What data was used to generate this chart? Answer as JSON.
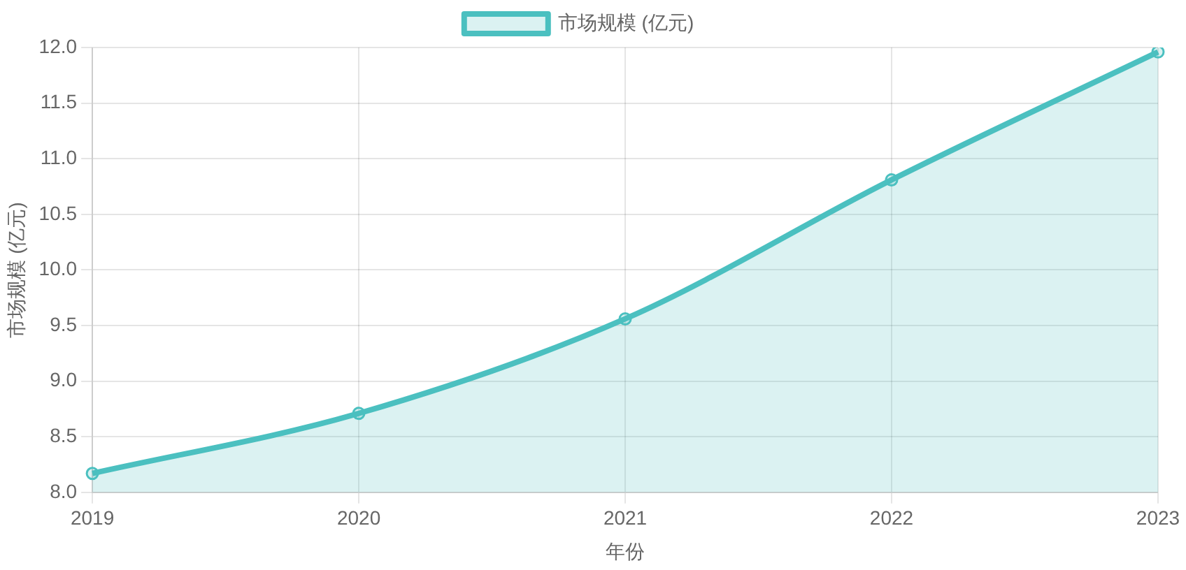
{
  "chart_data": {
    "type": "area",
    "xlabel": "年份",
    "ylabel": "市场规模 (亿元)",
    "categories": [
      "2019",
      "2020",
      "2021",
      "2022",
      "2023"
    ],
    "series": [
      {
        "name": "市场规模 (亿元)",
        "color": "#4bc0c0",
        "values": [
          8.17,
          8.71,
          9.56,
          10.81,
          11.96
        ]
      }
    ],
    "ylim": [
      8,
      12
    ],
    "yticks": [
      {
        "value": 8,
        "label": "8.0"
      },
      {
        "value": 8.5,
        "label": "8.5"
      },
      {
        "value": 9,
        "label": "9.0"
      },
      {
        "value": 9.5,
        "label": "9.5"
      },
      {
        "value": 10,
        "label": "10.0"
      },
      {
        "value": 10.5,
        "label": "10.5"
      },
      {
        "value": 11,
        "label": "11.0"
      },
      {
        "value": 11.5,
        "label": "11.5"
      },
      {
        "value": 12,
        "label": "12.0"
      }
    ],
    "grid": true,
    "legend": "top",
    "marker": "circle"
  }
}
